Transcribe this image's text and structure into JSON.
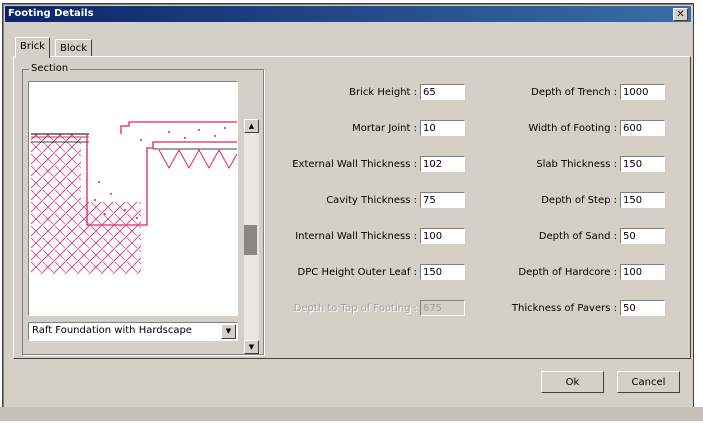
{
  "window": {
    "title": "Footing Details"
  },
  "tabs": [
    {
      "label": "Brick"
    },
    {
      "label": "Block"
    }
  ],
  "section": {
    "group_label": "Section",
    "preset_selected": "Raft Foundation with Hardscape"
  },
  "left_fields": [
    {
      "label": "Brick Height :",
      "value": "65"
    },
    {
      "label": "Mortar Joint :",
      "value": "10"
    },
    {
      "label": "External Wall Thickness :",
      "value": "102"
    },
    {
      "label": "Cavity Thickness :",
      "value": "75"
    },
    {
      "label": "Internal Wall Thickness :",
      "value": "100"
    },
    {
      "label": "DPC Height Outer Leaf :",
      "value": "150"
    },
    {
      "label": "Depth to Top of Footing :",
      "value": "675"
    }
  ],
  "right_fields": [
    {
      "label": "Depth of Trench :",
      "value": "1000"
    },
    {
      "label": "Width of Footing :",
      "value": "600"
    },
    {
      "label": "Slab Thickness :",
      "value": "150"
    },
    {
      "label": "Depth of Step :",
      "value": "150"
    },
    {
      "label": "Depth of Sand :",
      "value": "50"
    },
    {
      "label": "Depth of Hardcore :",
      "value": "100"
    },
    {
      "label": "Thickness of Pavers :",
      "value": "50"
    }
  ],
  "buttons": {
    "ok": "Ok",
    "cancel": "Cancel"
  },
  "icons": {
    "close": "close-icon",
    "scroll_up": "arrow-up-icon",
    "scroll_down": "arrow-down-icon",
    "dropdown": "chevron-down-icon"
  },
  "colors": {
    "title_bar": "#0a246a",
    "drawing_line": "#e0206a",
    "face": "#d4d0c8"
  }
}
